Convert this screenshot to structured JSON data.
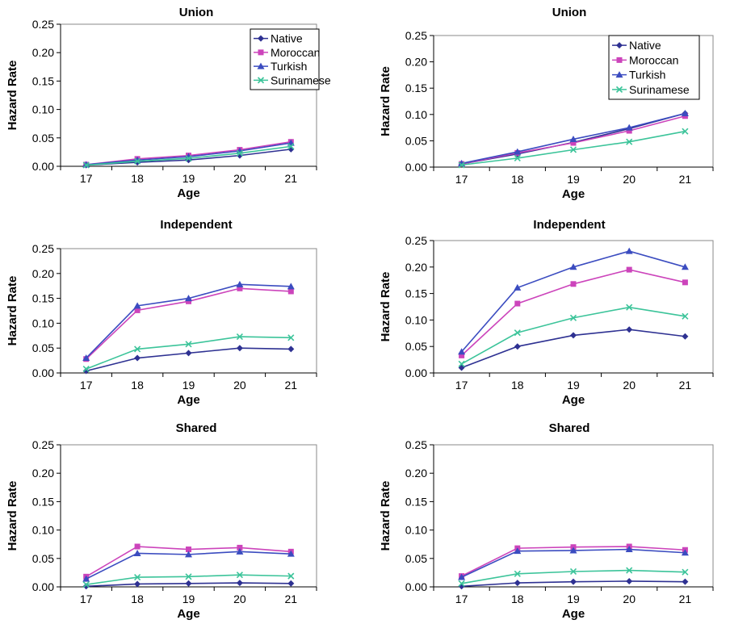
{
  "colors": {
    "Native": "#2e3192",
    "Moroccan": "#cc44bb",
    "Turkish": "#3b4cc0",
    "Surinamese": "#3cc49a"
  },
  "markers": {
    "Native": "diamond",
    "Moroccan": "square",
    "Turkish": "triangle",
    "Surinamese": "x"
  },
  "chart_data": [
    {
      "type": "line",
      "title": "Union",
      "xlabel": "Age",
      "ylabel": "Hazard Rate",
      "x": [
        17,
        18,
        19,
        20,
        21
      ],
      "ylim": [
        0,
        0.25
      ],
      "yticks": [
        "0.00",
        "0.05",
        "0.10",
        "0.15",
        "0.20",
        "0.25"
      ],
      "legend": "top-right",
      "series": [
        {
          "name": "Native",
          "values": [
            0.002,
            0.007,
            0.011,
            0.019,
            0.03
          ]
        },
        {
          "name": "Moroccan",
          "values": [
            0.003,
            0.013,
            0.019,
            0.029,
            0.043
          ]
        },
        {
          "name": "Turkish",
          "values": [
            0.003,
            0.011,
            0.017,
            0.027,
            0.041
          ]
        },
        {
          "name": "Surinamese",
          "values": [
            0.002,
            0.009,
            0.014,
            0.023,
            0.035
          ]
        }
      ]
    },
    {
      "type": "line",
      "title": "Union",
      "xlabel": "Age",
      "ylabel": "Hazard Rate",
      "x": [
        17,
        18,
        19,
        20,
        21
      ],
      "ylim": [
        0,
        0.25
      ],
      "yticks": [
        "0.00",
        "0.05",
        "0.10",
        "0.15",
        "0.20",
        "0.25"
      ],
      "legend": "top-right",
      "series": [
        {
          "name": "Native",
          "values": [
            0.006,
            0.025,
            0.047,
            0.073,
            0.102
          ]
        },
        {
          "name": "Moroccan",
          "values": [
            0.006,
            0.027,
            0.046,
            0.069,
            0.097
          ]
        },
        {
          "name": "Turkish",
          "values": [
            0.007,
            0.029,
            0.053,
            0.075,
            0.102
          ]
        },
        {
          "name": "Surinamese",
          "values": [
            0.004,
            0.017,
            0.033,
            0.048,
            0.068
          ]
        }
      ]
    },
    {
      "type": "line",
      "title": "Independent",
      "xlabel": "Age",
      "ylabel": "Hazard Rate",
      "x": [
        17,
        18,
        19,
        20,
        21
      ],
      "ylim": [
        0,
        0.25
      ],
      "yticks": [
        "0.00",
        "0.05",
        "0.10",
        "0.15",
        "0.20",
        "0.25"
      ],
      "series": [
        {
          "name": "Native",
          "values": [
            0.004,
            0.03,
            0.04,
            0.05,
            0.048
          ]
        },
        {
          "name": "Moroccan",
          "values": [
            0.028,
            0.126,
            0.144,
            0.17,
            0.164
          ]
        },
        {
          "name": "Turkish",
          "values": [
            0.03,
            0.135,
            0.15,
            0.178,
            0.174
          ]
        },
        {
          "name": "Surinamese",
          "values": [
            0.008,
            0.048,
            0.058,
            0.073,
            0.071
          ]
        }
      ]
    },
    {
      "type": "line",
      "title": "Independent",
      "xlabel": "Age",
      "ylabel": "Hazard Rate",
      "x": [
        17,
        18,
        19,
        20,
        21
      ],
      "ylim": [
        0,
        0.25
      ],
      "yticks": [
        "0.00",
        "0.05",
        "0.10",
        "0.15",
        "0.20",
        "0.25"
      ],
      "series": [
        {
          "name": "Native",
          "values": [
            0.01,
            0.05,
            0.071,
            0.082,
            0.069
          ]
        },
        {
          "name": "Moroccan",
          "values": [
            0.033,
            0.131,
            0.168,
            0.195,
            0.171
          ]
        },
        {
          "name": "Turkish",
          "values": [
            0.04,
            0.161,
            0.2,
            0.23,
            0.2
          ]
        },
        {
          "name": "Surinamese",
          "values": [
            0.017,
            0.076,
            0.104,
            0.124,
            0.107
          ]
        }
      ]
    },
    {
      "type": "line",
      "title": "Shared",
      "xlabel": "Age",
      "ylabel": "Hazard Rate",
      "x": [
        17,
        18,
        19,
        20,
        21
      ],
      "ylim": [
        0,
        0.25
      ],
      "yticks": [
        "0.00",
        "0.05",
        "0.10",
        "0.15",
        "0.20",
        "0.25"
      ],
      "series": [
        {
          "name": "Native",
          "values": [
            0.001,
            0.005,
            0.006,
            0.007,
            0.006
          ]
        },
        {
          "name": "Moroccan",
          "values": [
            0.018,
            0.071,
            0.066,
            0.069,
            0.062
          ]
        },
        {
          "name": "Turkish",
          "values": [
            0.014,
            0.059,
            0.057,
            0.062,
            0.058
          ]
        },
        {
          "name": "Surinamese",
          "values": [
            0.004,
            0.017,
            0.018,
            0.021,
            0.019
          ]
        }
      ]
    },
    {
      "type": "line",
      "title": "Shared",
      "xlabel": "Age",
      "ylabel": "Hazard Rate",
      "x": [
        17,
        18,
        19,
        20,
        21
      ],
      "ylim": [
        0,
        0.25
      ],
      "yticks": [
        "0.00",
        "0.05",
        "0.10",
        "0.15",
        "0.20",
        "0.25"
      ],
      "series": [
        {
          "name": "Native",
          "values": [
            0.001,
            0.007,
            0.009,
            0.01,
            0.009
          ]
        },
        {
          "name": "Moroccan",
          "values": [
            0.019,
            0.068,
            0.07,
            0.071,
            0.065
          ]
        },
        {
          "name": "Turkish",
          "values": [
            0.017,
            0.063,
            0.064,
            0.066,
            0.06
          ]
        },
        {
          "name": "Surinamese",
          "values": [
            0.006,
            0.023,
            0.027,
            0.029,
            0.026
          ]
        }
      ]
    }
  ]
}
